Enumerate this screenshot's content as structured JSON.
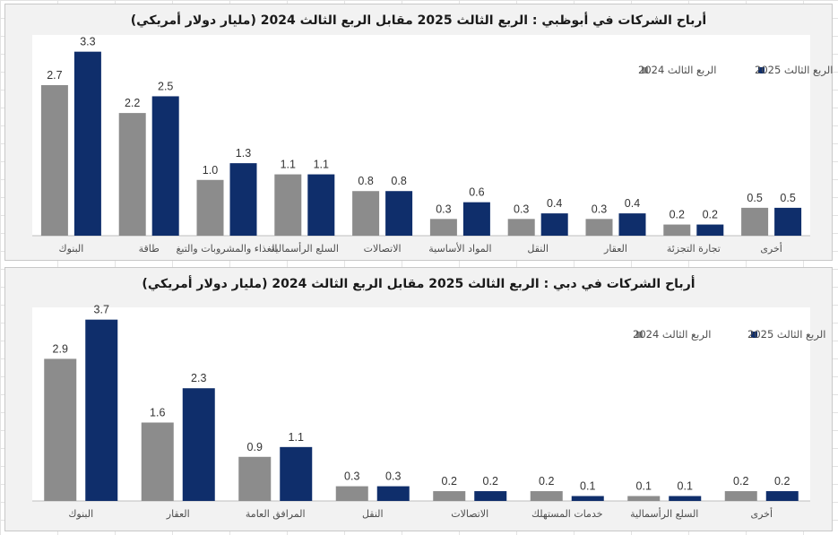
{
  "chart_data": [
    {
      "type": "bar",
      "title": "أرباح الشركات في أبوظبي : الربع  الثالث 2025 مقابل الربع  الثالث 2024 (مليار دولار أمريكي)",
      "categories": [
        "البنوك",
        "طاقة",
        "الغذاء والمشروبات والتبغ",
        "السلع الرأسمالية",
        "الاتصالات",
        "المواد الأساسية",
        "النقل",
        "العقار",
        "تجارة التجزئة",
        "أخرى"
      ],
      "series": [
        {
          "name": "الربع الثالث 2024",
          "color": "#8c8c8c",
          "values": [
            2.7,
            2.2,
            1.0,
            1.1,
            0.8,
            0.3,
            0.3,
            0.3,
            0.2,
            0.5
          ],
          "labels": [
            "2.7",
            "2.2",
            "1.0",
            "1.1",
            "0.8",
            "0.3",
            "0.3",
            "0.3",
            "0.2",
            "0.5"
          ]
        },
        {
          "name": "الربع الثالث 2025",
          "color": "#0f2e6b",
          "values": [
            3.3,
            2.5,
            1.3,
            1.1,
            0.8,
            0.6,
            0.4,
            0.4,
            0.2,
            0.5
          ],
          "labels": [
            "3.3",
            "2.5",
            "1.3",
            "1.1",
            "0.8",
            "0.6",
            "0.4",
            "0.4",
            "0.2",
            "0.5"
          ]
        }
      ],
      "ylim": [
        0,
        3.6
      ],
      "legend": "top-right"
    },
    {
      "type": "bar",
      "title": "أرباح الشركات في دبي : الربع  الثالث 2025 مقابل الربع  الثالث 2024 (مليار دولار أمريكي)",
      "categories": [
        "البنوك",
        "العقار",
        "المرافق العامة",
        "النقل",
        "الاتصالات",
        "خدمات المستهلك",
        "السلع الرأسمالية",
        "أخرى"
      ],
      "series": [
        {
          "name": "الربع الثالث 2024",
          "color": "#8c8c8c",
          "values": [
            2.9,
            1.6,
            0.9,
            0.3,
            0.2,
            0.2,
            0.1,
            0.2
          ],
          "labels": [
            "2.9",
            "1.6",
            "0.9",
            "0.3",
            "0.2",
            "0.2",
            "0.1",
            "0.2"
          ]
        },
        {
          "name": "الربع الثالث 2025",
          "color": "#0f2e6b",
          "values": [
            3.7,
            2.3,
            1.1,
            0.3,
            0.2,
            0.1,
            0.1,
            0.2
          ],
          "labels": [
            "3.7",
            "2.3",
            "1.1",
            "0.3",
            "0.2",
            "0.1",
            "0.1",
            "0.2"
          ]
        }
      ],
      "ylim": [
        0,
        3.95
      ],
      "legend": "top-right"
    }
  ]
}
